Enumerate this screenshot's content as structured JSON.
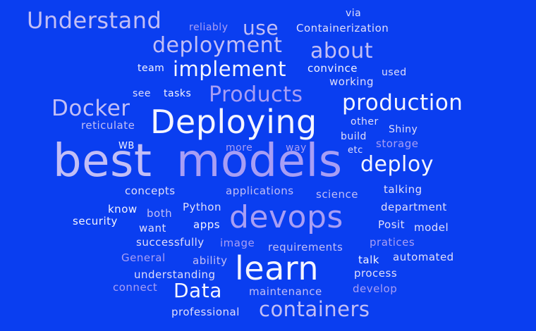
{
  "word_cloud": {
    "background": "#0a3ef0",
    "palette": [
      "#c2bef6",
      "#f4f4ff",
      "#a89ef5",
      "#e0defa"
    ],
    "words": {
      "understand": "Understand",
      "reliably": "reliably",
      "use": "use",
      "via": "via",
      "containerization": "Containerization",
      "deployment": "deployment",
      "about": "about",
      "team": "team",
      "implement": "implement",
      "convince": "convince",
      "used": "used",
      "working": "working",
      "see": "see",
      "tasks": "tasks",
      "products": "Products",
      "docker": "Docker",
      "production": "production",
      "deploying": "Deploying",
      "reticulate": "reticulate",
      "other": "other",
      "shiny": "Shiny",
      "build": "build",
      "storage": "storage",
      "wb": "WB",
      "more": "more",
      "way": "way",
      "etc": "etc",
      "best": "best",
      "models": "models",
      "deploy": "deploy",
      "concepts": "concepts",
      "applications": "applications",
      "science": "science",
      "talking": "talking",
      "know": "know",
      "both": "both",
      "python": "Python",
      "department": "department",
      "security": "security",
      "devops": "devops",
      "want": "want",
      "apps": "apps",
      "posit": "Posit",
      "model": "model",
      "successfully": "successfully",
      "image": "image",
      "requirements": "requirements",
      "pratices": "pratices",
      "general": "General",
      "ability": "ability",
      "learn": "learn",
      "talk": "talk",
      "automated": "automated",
      "understanding": "understanding",
      "process": "process",
      "connect": "connect",
      "data": "Data",
      "maintenance": "maintenance",
      "develop": "develop",
      "professional": "professional",
      "containers": "containers"
    }
  }
}
